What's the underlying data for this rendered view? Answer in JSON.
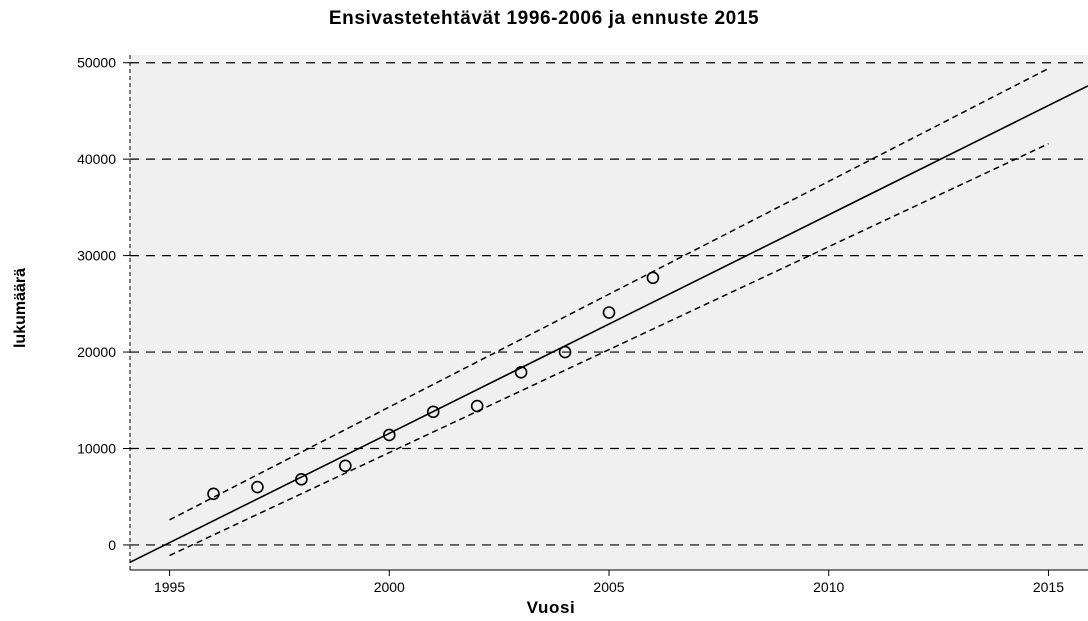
{
  "chart_data": {
    "type": "scatter",
    "title": "Ensivastetehtävät 1996-2006 ja ennuste 2015",
    "xlabel": "Vuosi",
    "ylabel": "lukumäärä",
    "xlim": [
      1994.1,
      2015.9
    ],
    "ylim": [
      -2600,
      50800
    ],
    "xticks": [
      1995,
      2000,
      2005,
      2010,
      2015
    ],
    "yticks": [
      0,
      10000,
      20000,
      30000,
      40000,
      50000
    ],
    "grid": "horizontal dashed",
    "legend": "none",
    "points": {
      "x": [
        1996,
        1997,
        1998,
        1999,
        2000,
        2001,
        2002,
        2003,
        2004,
        2005,
        2006
      ],
      "y": [
        5300,
        6000,
        6800,
        8200,
        11400,
        13800,
        14400,
        17900,
        20000,
        24100,
        27700
      ]
    },
    "fit_line": {
      "x": [
        1994.1,
        2015.9
      ],
      "y": [
        -1800,
        47600
      ]
    },
    "confidence_upper": {
      "x": [
        1995,
        2015
      ],
      "y": [
        2600,
        49400
      ]
    },
    "confidence_lower": {
      "x": [
        1995,
        2015
      ],
      "y": [
        -1100,
        41600
      ]
    },
    "colors": {
      "plot_background": "#f0f0f0",
      "ink": "#000000"
    }
  }
}
